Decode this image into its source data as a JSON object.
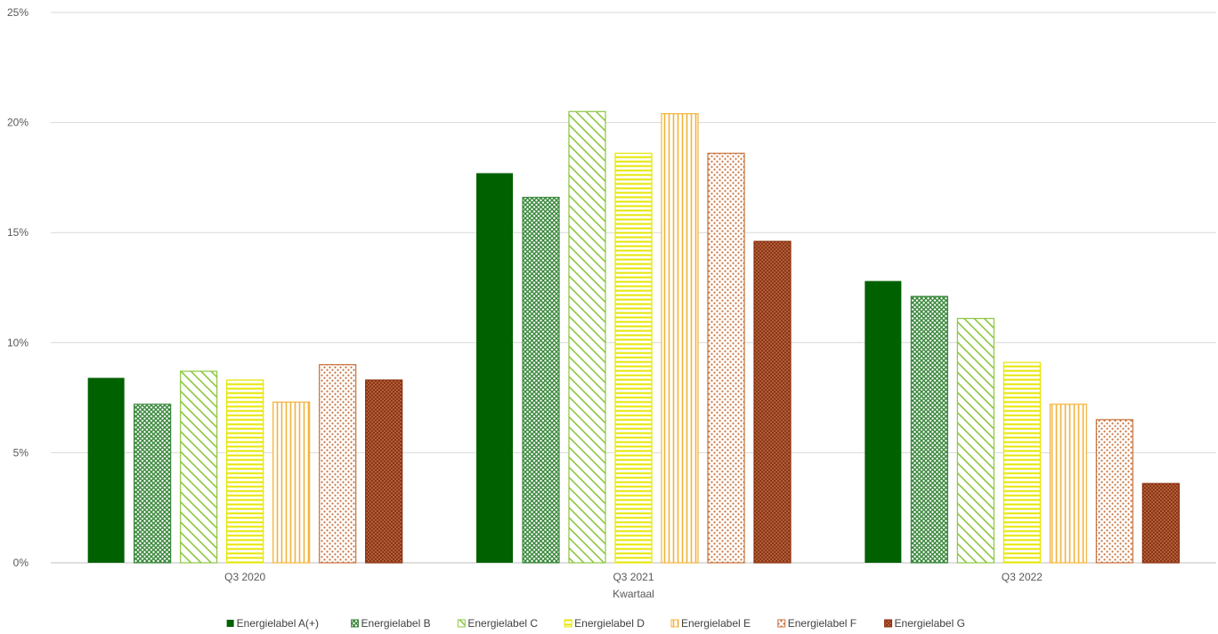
{
  "chart_data": {
    "type": "bar",
    "title": "",
    "xlabel": "Kwartaal",
    "ylabel": "",
    "ylim": [
      0,
      25
    ],
    "yticks": [
      "0%",
      "5%",
      "10%",
      "15%",
      "20%",
      "25%"
    ],
    "categories": [
      "Q3 2020",
      "Q3 2021",
      "Q3 2022"
    ],
    "grid": true,
    "legend_position": "bottom",
    "series": [
      {
        "name": "Energielabel A(+)",
        "values": [
          8.4,
          17.7,
          12.8
        ],
        "color": "#006100",
        "pattern": "solid"
      },
      {
        "name": "Energielabel B",
        "values": [
          7.2,
          16.6,
          12.1
        ],
        "color": "#38873a",
        "pattern": "crosshatch"
      },
      {
        "name": "Energielabel C",
        "values": [
          8.7,
          20.5,
          11.1
        ],
        "color": "#8cc63f",
        "pattern": "diagonal"
      },
      {
        "name": "Energielabel D",
        "values": [
          8.3,
          18.6,
          9.1
        ],
        "color": "#e6e600",
        "pattern": "horizontal"
      },
      {
        "name": "Energielabel E",
        "values": [
          7.3,
          20.4,
          7.2
        ],
        "color": "#f2b33d",
        "pattern": "vertical"
      },
      {
        "name": "Energielabel F",
        "values": [
          9.0,
          18.6,
          6.5
        ],
        "color": "#c8703a",
        "pattern": "dots"
      },
      {
        "name": "Energielabel G",
        "values": [
          8.3,
          14.6,
          3.6
        ],
        "color": "#8b2f0e",
        "pattern": "weave"
      }
    ]
  }
}
